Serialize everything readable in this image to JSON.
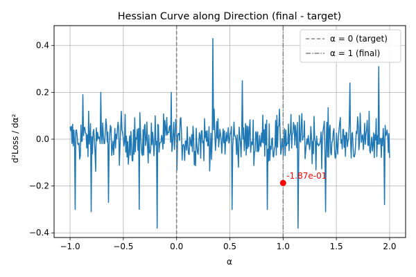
{
  "chart_data": {
    "type": "line",
    "title": "Hessian Curve along Direction (final - target)",
    "xlabel": "α",
    "ylabel": "d²Loss / dα²",
    "xlim": [
      -1.15,
      2.15
    ],
    "ylim": [
      -0.42,
      0.485
    ],
    "xticks": [
      -1.0,
      -0.5,
      0.0,
      0.5,
      1.0,
      1.5,
      2.0
    ],
    "xtick_labels": [
      "−1.0",
      "−0.5",
      "0.0",
      "0.5",
      "1.0",
      "1.5",
      "2.0"
    ],
    "yticks": [
      -0.4,
      -0.2,
      0.0,
      0.2,
      0.4
    ],
    "ytick_labels": [
      "−0.4",
      "−0.2",
      "0.0",
      "0.2",
      "0.4"
    ],
    "grid": true,
    "legend_position": "upper right",
    "series": [
      {
        "name": "",
        "color": "#1f77b4",
        "x_range": [
          -1.0,
          2.0
        ],
        "n_points": 500,
        "approx_amplitude": 0.1,
        "visible_extremes": [
          {
            "x": -0.95,
            "y": -0.3
          },
          {
            "x": -0.88,
            "y": 0.19
          },
          {
            "x": -0.8,
            "y": -0.31
          },
          {
            "x": -0.71,
            "y": 0.2
          },
          {
            "x": -0.64,
            "y": -0.27
          },
          {
            "x": -0.35,
            "y": -0.3
          },
          {
            "x": -0.18,
            "y": -0.38
          },
          {
            "x": -0.05,
            "y": 0.2
          },
          {
            "x": 0.34,
            "y": 0.43
          },
          {
            "x": 0.52,
            "y": -0.3
          },
          {
            "x": 0.62,
            "y": 0.25
          },
          {
            "x": 0.85,
            "y": -0.3
          },
          {
            "x": 1.14,
            "y": -0.38
          },
          {
            "x": 1.4,
            "y": -0.31
          },
          {
            "x": 1.63,
            "y": 0.24
          },
          {
            "x": 1.9,
            "y": 0.31
          },
          {
            "x": 1.95,
            "y": -0.28
          }
        ]
      }
    ],
    "vlines": [
      {
        "x": 0.0,
        "label": "α = 0 (target)",
        "style": "dashed",
        "color": "#808080"
      },
      {
        "x": 1.0,
        "label": "α = 1 (final)",
        "style": "dashdot",
        "color": "#808080"
      }
    ],
    "marker": {
      "x": 1.0,
      "y": -0.187,
      "color": "#ff0000"
    },
    "annotation": {
      "text": "-1.87e-01",
      "x": 1.0,
      "y": -0.187,
      "color": "#ff0000"
    }
  }
}
